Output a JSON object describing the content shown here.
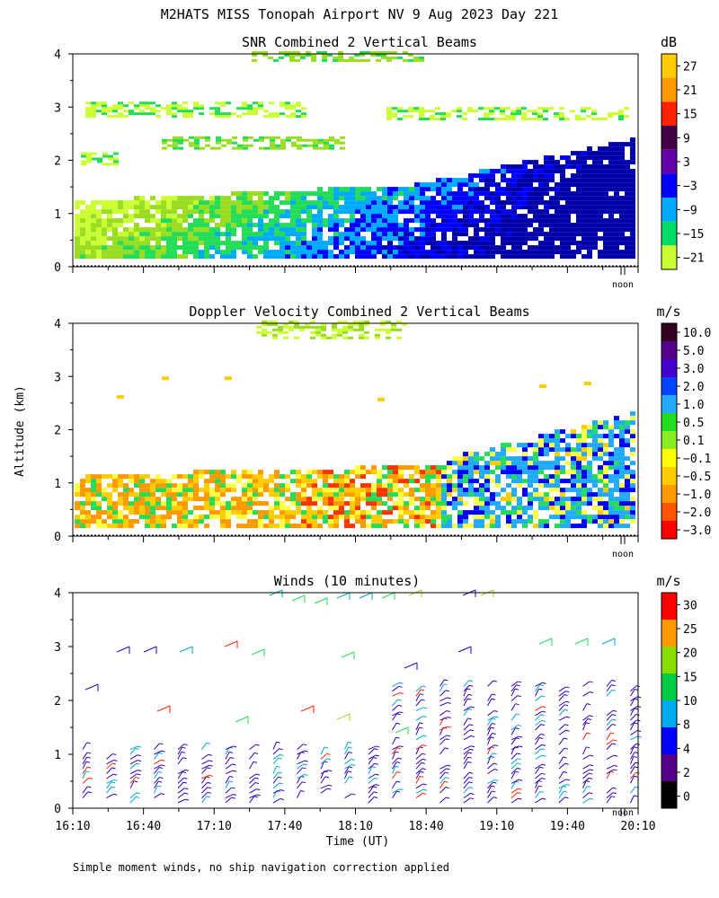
{
  "figure": {
    "title": "M2HATS MISS Tonopah Airport NV   9 Aug 2023 Day 221",
    "ylabel": "Altitude (km)",
    "xlabel": "Time (UT)",
    "footnote": "Simple moment winds, no ship navigation correction applied",
    "noon_label": "noon"
  },
  "chart_data": [
    {
      "type": "heatmap",
      "title": "SNR Combined 2 Vertical Beams",
      "ylabel": "Altitude (km)",
      "ylim": [
        0,
        4
      ],
      "yticks": [
        "0",
        "1",
        "2",
        "3",
        "4"
      ],
      "colorbar": {
        "unit": "dB",
        "labels": [
          "27",
          "21",
          "15",
          "9",
          "3",
          "−3",
          "−9",
          "−15",
          "−21"
        ],
        "colors": [
          "#ffcc00",
          "#ff9900",
          "#ff2200",
          "#440044",
          "#6600aa",
          "#0000ff",
          "#00aaff",
          "#00dd66",
          "#ccff33"
        ]
      }
    },
    {
      "type": "heatmap",
      "title": "Doppler Velocity Combined 2 Vertical Beams",
      "ylabel": "Altitude (km)",
      "ylim": [
        0,
        4
      ],
      "yticks": [
        "0",
        "1",
        "2",
        "3",
        "4"
      ],
      "colorbar": {
        "unit": "m/s",
        "labels": [
          "10.0",
          "5.0",
          "3.0",
          "2.0",
          "1.0",
          "0.5",
          "0.1",
          "−0.1",
          "−0.5",
          "−1.0",
          "−2.0",
          "−3.0"
        ],
        "colors": [
          "#330022",
          "#550088",
          "#4400cc",
          "#0044ff",
          "#22aaff",
          "#22dd22",
          "#88ee22",
          "#ffff00",
          "#ffcc00",
          "#ff9900",
          "#ff5500",
          "#ff0000"
        ]
      }
    },
    {
      "type": "scatter",
      "title": "Winds (10 minutes)",
      "ylabel": "Altitude (km)",
      "xlabel": "Time (UT)",
      "ylim": [
        0,
        4
      ],
      "yticks": [
        "0",
        "1",
        "2",
        "3",
        "4"
      ],
      "xticks": [
        "16:10",
        "16:40",
        "17:10",
        "17:40",
        "18:10",
        "18:40",
        "19:10",
        "19:40",
        "20:10"
      ],
      "colorbar": {
        "unit": "m/s",
        "labels": [
          "30",
          "25",
          "20",
          "15",
          "10",
          "8",
          "4",
          "2",
          "0"
        ],
        "colors": [
          "#ff0000",
          "#ff9900",
          "#88dd00",
          "#00cc44",
          "#00aaee",
          "#0000ff",
          "#550088",
          "#000000"
        ]
      }
    }
  ],
  "colors": {
    "low_a": "#ccff33",
    "low_b": "#99dd22",
    "mid_a": "#22dd55",
    "mid_b": "#00aaff",
    "high_a": "#0000ff",
    "high_b": "#0000aa",
    "vel_warm_a": "#ffcc00",
    "vel_warm_b": "#ff9900",
    "vel_warm_c": "#ff3300",
    "vel_neutral": "#ffff44",
    "vel_cool_a": "#22aaff",
    "vel_cool_b": "#0000ff",
    "wind_low": "#3300bb",
    "wind_mid": "#00aacc",
    "wind_high": "#ff2200"
  }
}
